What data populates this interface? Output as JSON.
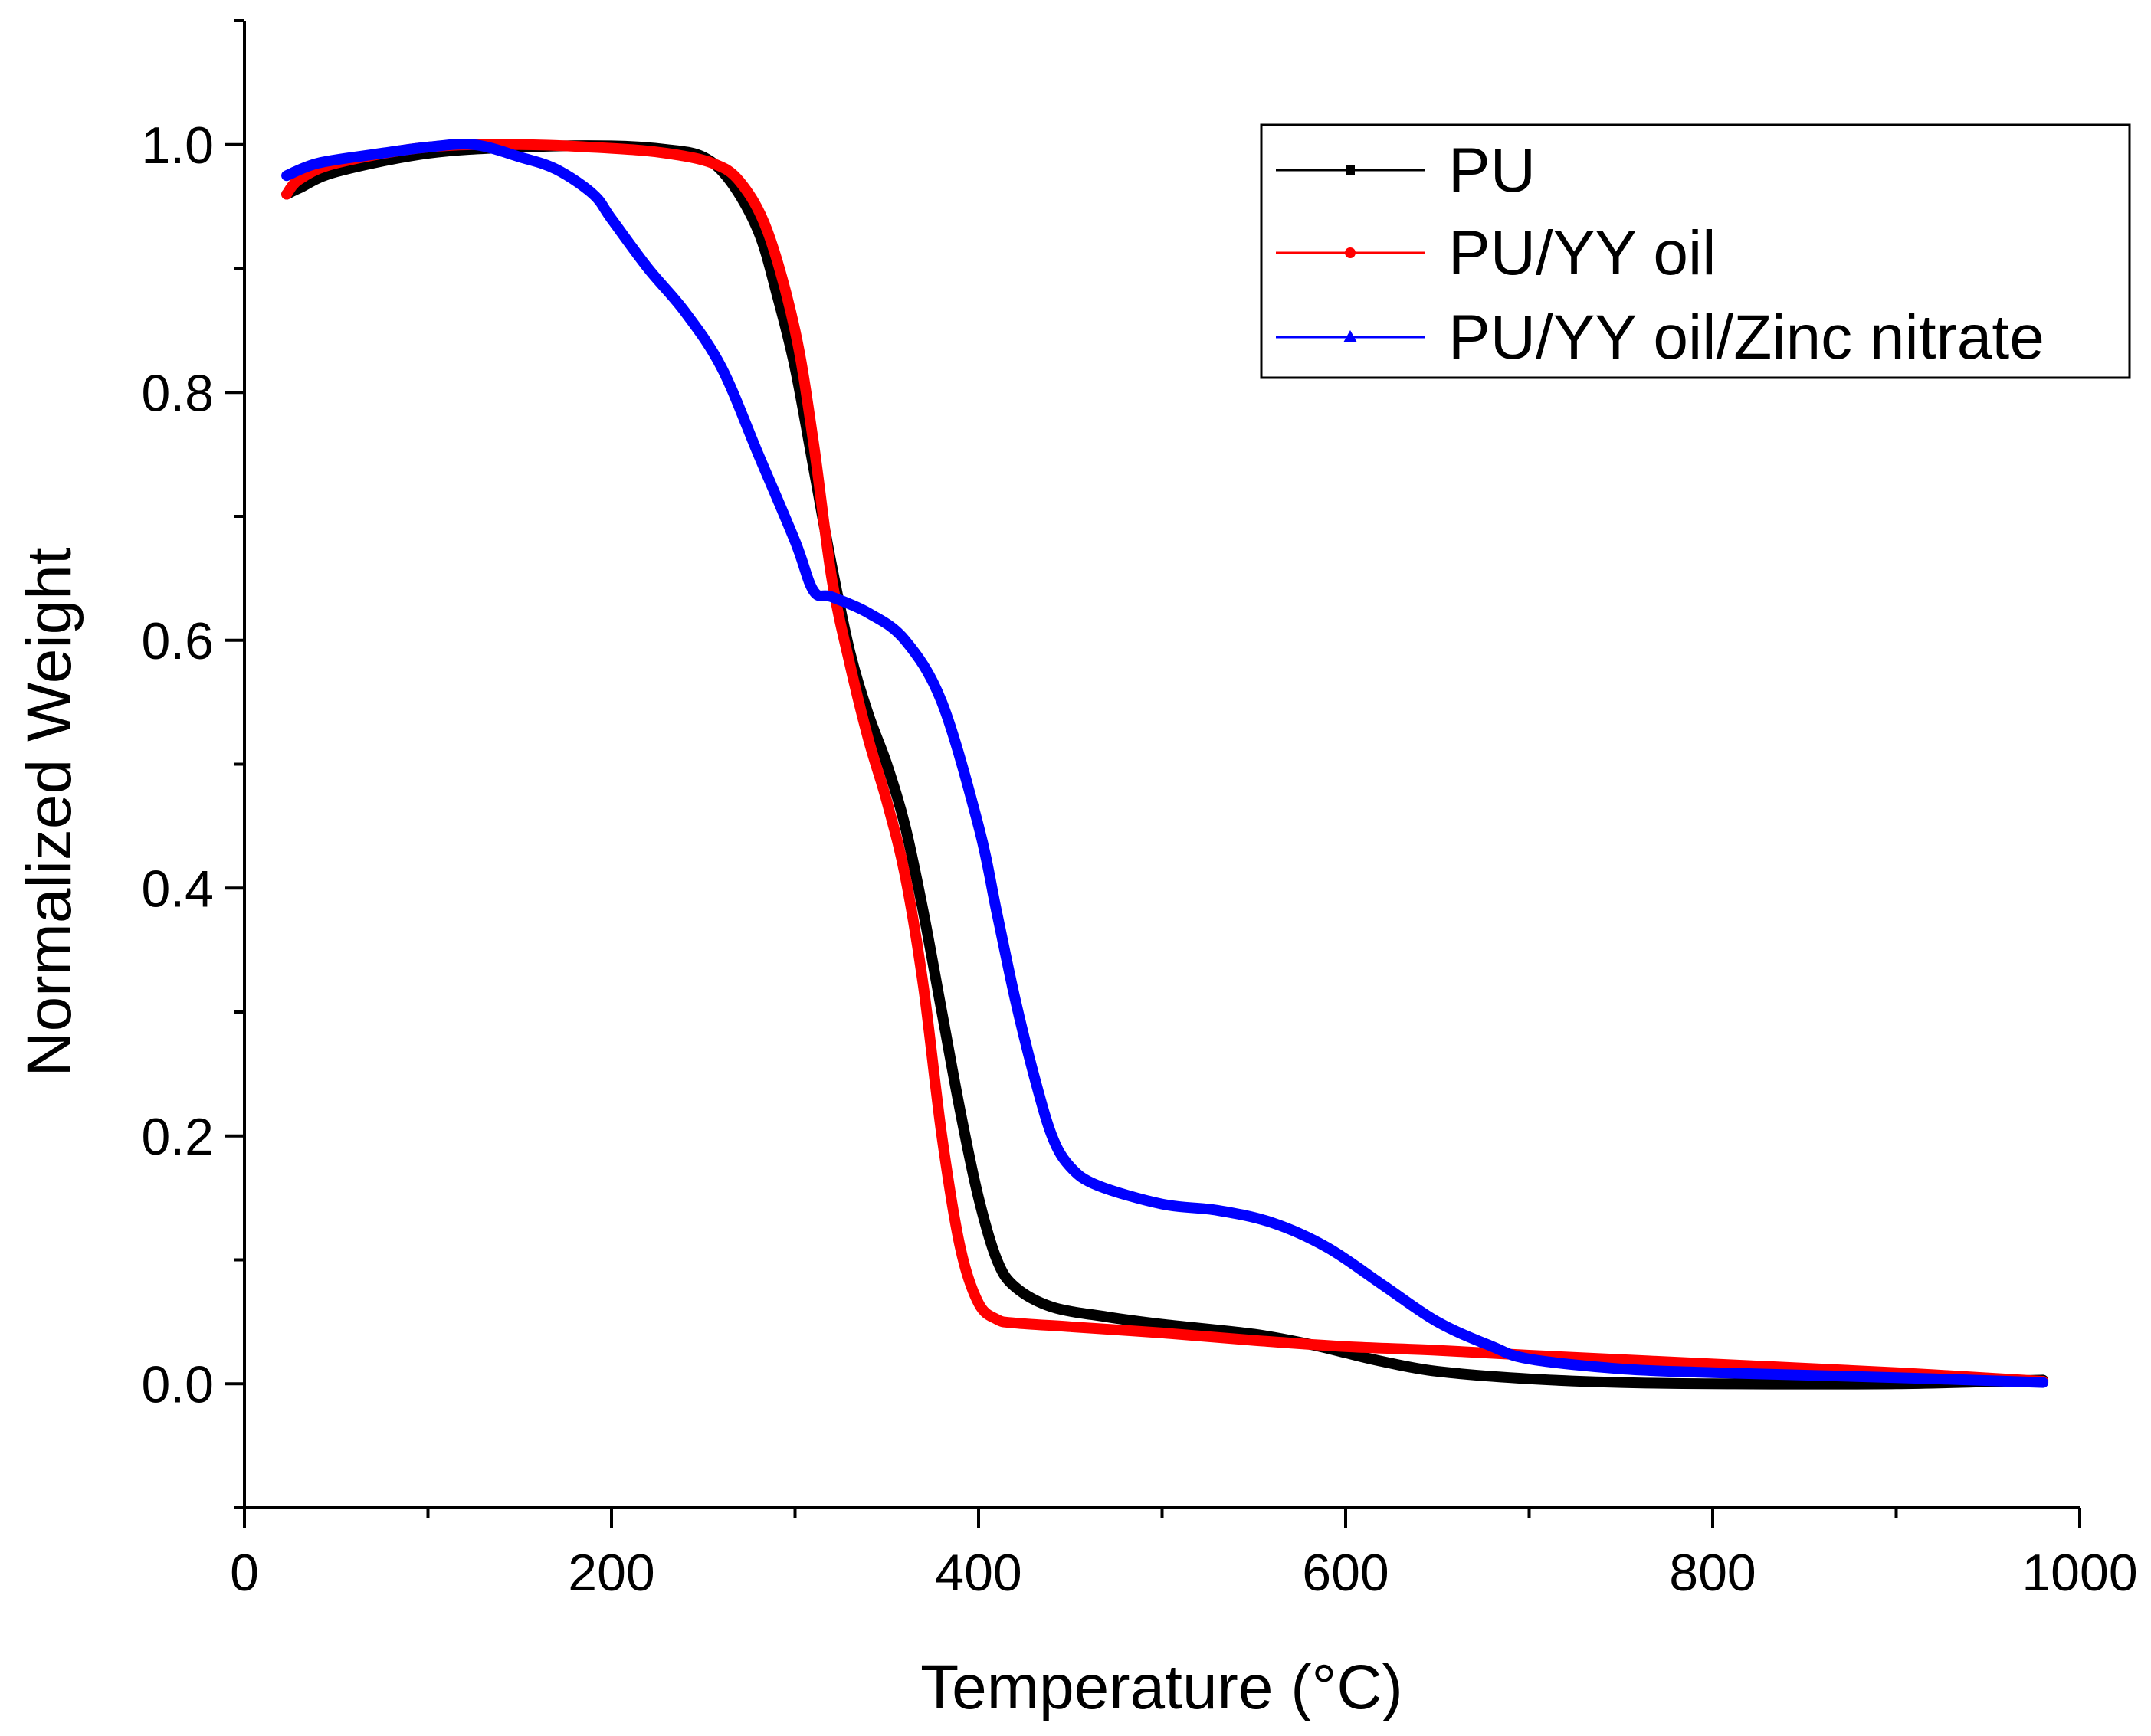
{
  "chart_data": {
    "type": "line",
    "title": "",
    "xlabel": "Temperature (°C)",
    "ylabel": "Normalized Weight",
    "xlim": [
      0,
      1000
    ],
    "ylim": [
      -0.1,
      1.1
    ],
    "xticks": [
      0,
      200,
      400,
      600,
      800,
      1000
    ],
    "xtick_labels": [
      "0",
      "200",
      "400",
      "600",
      "800",
      "1000"
    ],
    "xminor": [
      100,
      300,
      500,
      700,
      900
    ],
    "yticks": [
      0.0,
      0.2,
      0.4,
      0.6,
      0.8,
      1.0
    ],
    "ytick_labels": [
      "0.0",
      "0.2",
      "0.4",
      "0.6",
      "0.8",
      "1.0"
    ],
    "yminor": [
      -0.1,
      0.1,
      0.3,
      0.5,
      0.7,
      0.9,
      1.1
    ],
    "grid": false,
    "legend_position": "top-right",
    "series": [
      {
        "name": "PU",
        "color": "#000000",
        "marker": "square",
        "points": [
          [
            23,
            0.96
          ],
          [
            30,
            0.965
          ],
          [
            50,
            0.978
          ],
          [
            100,
            0.993
          ],
          [
            150,
            0.998
          ],
          [
            200,
            0.999
          ],
          [
            230,
            0.996
          ],
          [
            250,
            0.99
          ],
          [
            265,
            0.97
          ],
          [
            280,
            0.93
          ],
          [
            290,
            0.88
          ],
          [
            300,
            0.82
          ],
          [
            310,
            0.74
          ],
          [
            320,
            0.66
          ],
          [
            330,
            0.59
          ],
          [
            340,
            0.54
          ],
          [
            350,
            0.5
          ],
          [
            360,
            0.45
          ],
          [
            370,
            0.38
          ],
          [
            380,
            0.3
          ],
          [
            390,
            0.22
          ],
          [
            400,
            0.15
          ],
          [
            410,
            0.1
          ],
          [
            420,
            0.078
          ],
          [
            440,
            0.062
          ],
          [
            470,
            0.054
          ],
          [
            500,
            0.048
          ],
          [
            550,
            0.04
          ],
          [
            580,
            0.032
          ],
          [
            600,
            0.025
          ],
          [
            620,
            0.018
          ],
          [
            650,
            0.01
          ],
          [
            700,
            0.004
          ],
          [
            750,
            0.001
          ],
          [
            800,
            0.0
          ],
          [
            900,
            0.0
          ],
          [
            980,
            0.003
          ]
        ]
      },
      {
        "name": "PU/YY oil",
        "color": "#ff0000",
        "marker": "circle",
        "points": [
          [
            23,
            0.96
          ],
          [
            30,
            0.972
          ],
          [
            50,
            0.985
          ],
          [
            100,
            0.998
          ],
          [
            150,
            1.0
          ],
          [
            200,
            0.997
          ],
          [
            230,
            0.993
          ],
          [
            255,
            0.985
          ],
          [
            270,
            0.97
          ],
          [
            285,
            0.93
          ],
          [
            300,
            0.85
          ],
          [
            310,
            0.76
          ],
          [
            320,
            0.65
          ],
          [
            330,
            0.58
          ],
          [
            340,
            0.52
          ],
          [
            350,
            0.47
          ],
          [
            360,
            0.41
          ],
          [
            370,
            0.32
          ],
          [
            380,
            0.2
          ],
          [
            390,
            0.11
          ],
          [
            400,
            0.065
          ],
          [
            410,
            0.052
          ],
          [
            420,
            0.049
          ],
          [
            450,
            0.046
          ],
          [
            500,
            0.041
          ],
          [
            550,
            0.035
          ],
          [
            600,
            0.03
          ],
          [
            650,
            0.027
          ],
          [
            700,
            0.023
          ],
          [
            800,
            0.016
          ],
          [
            900,
            0.009
          ],
          [
            980,
            0.002
          ]
        ]
      },
      {
        "name": "PU/YY oil/Zinc nitrate",
        "color": "#0000ff",
        "marker": "triangle",
        "points": [
          [
            23,
            0.975
          ],
          [
            40,
            0.985
          ],
          [
            70,
            0.992
          ],
          [
            100,
            0.998
          ],
          [
            125,
            1.0
          ],
          [
            150,
            0.99
          ],
          [
            170,
            0.98
          ],
          [
            190,
            0.96
          ],
          [
            200,
            0.94
          ],
          [
            220,
            0.9
          ],
          [
            240,
            0.865
          ],
          [
            260,
            0.82
          ],
          [
            280,
            0.75
          ],
          [
            300,
            0.68
          ],
          [
            310,
            0.64
          ],
          [
            320,
            0.635
          ],
          [
            340,
            0.622
          ],
          [
            360,
            0.6
          ],
          [
            380,
            0.55
          ],
          [
            400,
            0.45
          ],
          [
            410,
            0.38
          ],
          [
            420,
            0.31
          ],
          [
            430,
            0.25
          ],
          [
            440,
            0.2
          ],
          [
            450,
            0.175
          ],
          [
            465,
            0.16
          ],
          [
            500,
            0.145
          ],
          [
            530,
            0.14
          ],
          [
            560,
            0.13
          ],
          [
            590,
            0.11
          ],
          [
            620,
            0.08
          ],
          [
            650,
            0.05
          ],
          [
            680,
            0.03
          ],
          [
            700,
            0.02
          ],
          [
            750,
            0.012
          ],
          [
            800,
            0.009
          ],
          [
            900,
            0.005
          ],
          [
            980,
            0.001
          ]
        ]
      }
    ]
  }
}
